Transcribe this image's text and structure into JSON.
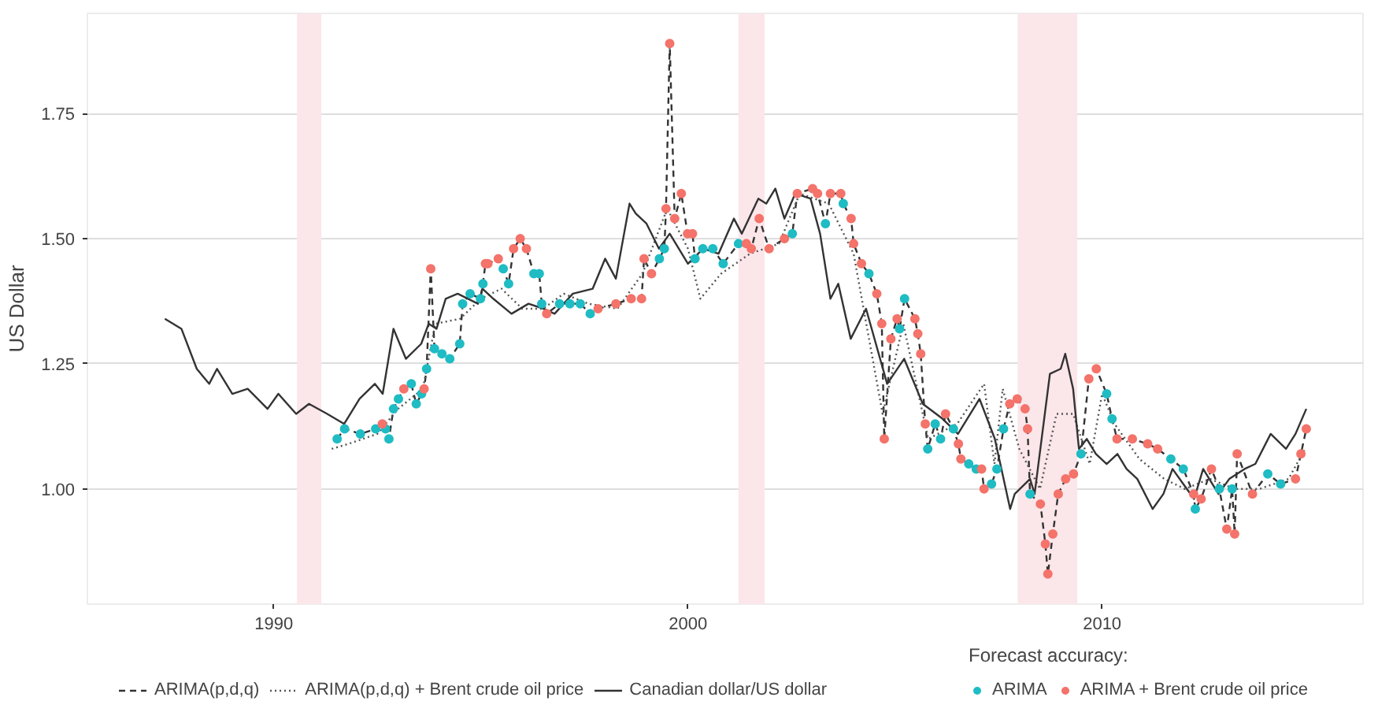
{
  "chart_data": {
    "type": "line",
    "ylabel": "US Dollar",
    "legend_title": "Forecast accuracy:",
    "xlim": [
      1985.5,
      2016.3
    ],
    "ylim": [
      0.77,
      1.95
    ],
    "xticks": [
      1990,
      2000,
      2010
    ],
    "yticks": [
      {
        "value": 1.0,
        "label": "1.00"
      },
      {
        "value": 1.25,
        "label": "1.25"
      },
      {
        "value": 1.5,
        "label": "1.50"
      },
      {
        "value": 1.75,
        "label": "1.75"
      }
    ],
    "grid": "y",
    "legend": "bottom",
    "bands": [
      {
        "axis": "x",
        "from": 1990.56,
        "to": 1991.15,
        "color": "#fbe6ea"
      },
      {
        "axis": "x",
        "from": 2001.22,
        "to": 2001.85,
        "color": "#fbe6ea"
      },
      {
        "axis": "x",
        "from": 2007.96,
        "to": 2009.4,
        "color": "#fbe6ea"
      }
    ],
    "series": [
      {
        "name": "ARIMA(p,d,q)",
        "line_style": "dashed",
        "color": "#333333",
        "x": [
          1991.53,
          1991.71,
          1992.09,
          1992.46,
          1992.62,
          1992.7,
          1992.78,
          1992.89,
          1993.01,
          1993.14,
          1993.32,
          1993.44,
          1993.57,
          1993.63,
          1993.69,
          1993.79,
          1993.88,
          1994.06,
          1994.25,
          1994.49,
          1994.56,
          1994.74,
          1994.99,
          1995.05,
          1995.11,
          1995.17,
          1995.42,
          1995.54,
          1995.67,
          1995.79,
          1995.95,
          1996.1,
          1996.28,
          1996.41,
          1996.47,
          1996.59,
          1996.9,
          1997.15,
          1997.4,
          1997.64,
          1997.83,
          1998.26,
          1998.63,
          1998.88,
          1998.94,
          1999.12,
          1999.31,
          1999.43,
          1999.47,
          1999.56,
          1999.68,
          1999.84,
          1999.99,
          2000.11,
          2000.17,
          2000.36,
          2000.6,
          2000.85,
          2001.22,
          2001.41,
          2001.53,
          2001.72,
          2001.96,
          2002.33,
          2002.52,
          2002.64,
          2003.01,
          2003.13,
          2003.32,
          2003.44,
          2003.69,
          2003.75,
          2003.94,
          2004.0,
          2004.19,
          2004.37,
          2004.56,
          2004.68,
          2004.74,
          2004.9,
          2005.05,
          2005.11,
          2005.23,
          2005.48,
          2005.55,
          2005.62,
          2005.73,
          2005.79,
          2005.97,
          2006.1,
          2006.22,
          2006.41,
          2006.53,
          2006.59,
          2006.78,
          2006.96,
          2007.09,
          2007.15,
          2007.33,
          2007.46,
          2007.62,
          2007.77,
          2007.95,
          2008.14,
          2008.2,
          2008.26,
          2008.51,
          2008.63,
          2008.69,
          2008.81,
          2008.94,
          2009.12,
          2009.31,
          2009.49,
          2009.68,
          2009.86,
          2010.11,
          2010.24,
          2010.36,
          2010.73,
          2011.1,
          2011.34,
          2011.66,
          2011.96,
          2012.21,
          2012.25,
          2012.39,
          2012.64,
          2012.83,
          2013.01,
          2013.14,
          2013.2,
          2013.26,
          2013.63,
          2014.0,
          2014.31,
          2014.67,
          2014.8,
          2014.93
        ],
        "values": [
          1.1,
          1.12,
          1.11,
          1.12,
          1.13,
          1.12,
          1.1,
          1.16,
          1.18,
          1.2,
          1.21,
          1.17,
          1.19,
          1.2,
          1.24,
          1.44,
          1.28,
          1.27,
          1.26,
          1.29,
          1.37,
          1.39,
          1.38,
          1.41,
          1.45,
          1.45,
          1.46,
          1.44,
          1.41,
          1.48,
          1.5,
          1.48,
          1.43,
          1.43,
          1.37,
          1.35,
          1.37,
          1.37,
          1.37,
          1.35,
          1.36,
          1.37,
          1.38,
          1.38,
          1.46,
          1.43,
          1.46,
          1.48,
          1.56,
          1.89,
          1.54,
          1.59,
          1.51,
          1.51,
          1.46,
          1.48,
          1.48,
          1.45,
          1.49,
          1.49,
          1.48,
          1.54,
          1.48,
          1.5,
          1.51,
          1.59,
          1.6,
          1.59,
          1.53,
          1.59,
          1.59,
          1.57,
          1.54,
          1.49,
          1.45,
          1.43,
          1.39,
          1.33,
          1.1,
          1.3,
          1.34,
          1.32,
          1.38,
          1.34,
          1.31,
          1.27,
          1.13,
          1.08,
          1.13,
          1.1,
          1.15,
          1.12,
          1.09,
          1.06,
          1.05,
          1.04,
          1.04,
          1.0,
          1.01,
          1.04,
          1.12,
          1.17,
          1.18,
          1.16,
          1.12,
          0.99,
          0.97,
          0.89,
          0.83,
          0.91,
          0.99,
          1.02,
          1.03,
          1.07,
          1.22,
          1.24,
          1.19,
          1.14,
          1.1,
          1.1,
          1.09,
          1.08,
          1.06,
          1.04,
          0.99,
          0.96,
          0.98,
          1.04,
          1.0,
          0.92,
          1.0,
          0.91,
          1.07,
          0.99,
          1.03,
          1.01,
          1.02,
          1.07,
          1.12
        ]
      },
      {
        "name": "ARIMA(p,d,q) + Brent crude oil price",
        "line_style": "dotted",
        "color": "#555555",
        "x": [
          1991.4,
          1991.8,
          1992.5,
          1993.0,
          1993.6,
          1993.9,
          1994.5,
          1995.0,
          1995.5,
          1996.0,
          1996.5,
          1997.0,
          1997.6,
          1998.3,
          1998.9,
          1999.5,
          2000.0,
          2000.3,
          2000.8,
          2001.5,
          2002.2,
          2002.7,
          2003.4,
          2004.0,
          2004.7,
          2005.2,
          2005.8,
          2006.5,
          2007.15,
          2007.4,
          2007.6,
          2008.0,
          2008.5,
          2008.9,
          2009.3,
          2009.7,
          2010.0,
          2010.3,
          2010.9,
          2011.5,
          2012.0,
          2012.6,
          2013.2,
          2013.8,
          2014.5,
          2014.9
        ],
        "values": [
          1.08,
          1.09,
          1.11,
          1.16,
          1.2,
          1.33,
          1.34,
          1.38,
          1.4,
          1.36,
          1.36,
          1.39,
          1.37,
          1.36,
          1.43,
          1.56,
          1.48,
          1.38,
          1.43,
          1.47,
          1.49,
          1.59,
          1.57,
          1.47,
          1.15,
          1.33,
          1.1,
          1.13,
          1.21,
          1.05,
          1.2,
          1.08,
          1.0,
          1.15,
          1.15,
          1.05,
          1.19,
          1.13,
          1.06,
          1.02,
          1.0,
          1.02,
          1.0,
          1.0,
          1.02,
          1.08
        ]
      },
      {
        "name": "Canadian dollar/US dollar",
        "line_style": "solid",
        "color": "#333333",
        "x": [
          1987.37,
          1987.77,
          1988.14,
          1988.44,
          1988.63,
          1989.0,
          1989.37,
          1989.85,
          1990.11,
          1990.54,
          1990.85,
          1991.29,
          1991.7,
          1992.07,
          1992.44,
          1992.63,
          1992.89,
          1993.19,
          1993.56,
          1993.74,
          1993.93,
          1994.15,
          1994.44,
          1994.93,
          1995.04,
          1995.3,
          1995.74,
          1996.15,
          1996.52,
          1996.78,
          1997.22,
          1997.7,
          1998.0,
          1998.26,
          1998.59,
          1998.74,
          1999.0,
          1999.3,
          1999.56,
          2000.0,
          2000.37,
          2000.74,
          2001.11,
          2001.3,
          2001.7,
          2001.89,
          2002.11,
          2002.33,
          2002.59,
          2002.96,
          2003.19,
          2003.44,
          2003.63,
          2003.93,
          2004.3,
          2004.81,
          2005.22,
          2005.67,
          2006.15,
          2006.52,
          2007.04,
          2007.41,
          2007.78,
          2007.89,
          2008.26,
          2008.37,
          2008.74,
          2009.0,
          2009.11,
          2009.3,
          2009.44,
          2009.63,
          2009.85,
          2010.11,
          2010.37,
          2010.59,
          2010.85,
          2011.22,
          2011.48,
          2011.7,
          2011.96,
          2012.22,
          2012.44,
          2012.81,
          2013.07,
          2013.44,
          2013.7,
          2014.07,
          2014.44,
          2014.67,
          2014.93
        ],
        "values": [
          1.34,
          1.32,
          1.24,
          1.21,
          1.24,
          1.19,
          1.2,
          1.16,
          1.19,
          1.15,
          1.17,
          1.15,
          1.13,
          1.18,
          1.21,
          1.19,
          1.32,
          1.26,
          1.29,
          1.33,
          1.32,
          1.38,
          1.39,
          1.37,
          1.4,
          1.38,
          1.35,
          1.37,
          1.36,
          1.35,
          1.39,
          1.4,
          1.46,
          1.42,
          1.57,
          1.55,
          1.53,
          1.48,
          1.51,
          1.45,
          1.48,
          1.47,
          1.54,
          1.51,
          1.58,
          1.57,
          1.6,
          1.54,
          1.59,
          1.58,
          1.51,
          1.38,
          1.41,
          1.3,
          1.36,
          1.21,
          1.26,
          1.17,
          1.14,
          1.11,
          1.18,
          1.1,
          0.96,
          0.99,
          1.02,
          0.99,
          1.23,
          1.24,
          1.27,
          1.2,
          1.08,
          1.1,
          1.07,
          1.05,
          1.07,
          1.04,
          1.02,
          0.96,
          0.99,
          1.04,
          1.01,
          0.98,
          1.04,
          0.99,
          1.02,
          1.04,
          1.05,
          1.11,
          1.08,
          1.11,
          1.16
        ]
      },
      {
        "name": "ARIMA",
        "type": "scatter",
        "marker": "circle",
        "color": "#1fbcc4",
        "x": [
          1991.53,
          1991.71,
          1992.09,
          1992.46,
          1992.7,
          1992.78,
          1992.89,
          1993.01,
          1993.32,
          1993.44,
          1993.57,
          1993.69,
          1993.88,
          1994.06,
          1994.25,
          1994.49,
          1994.56,
          1994.74,
          1994.99,
          1995.05,
          1995.54,
          1995.67,
          1996.28,
          1996.41,
          1996.47,
          1996.9,
          1997.15,
          1997.4,
          1997.64,
          1999.31,
          1999.43,
          2000.17,
          2000.36,
          2000.6,
          2000.85,
          2001.22,
          2002.52,
          2003.32,
          2003.75,
          2004.37,
          2005.11,
          2005.23,
          2005.79,
          2005.97,
          2006.1,
          2006.41,
          2006.78,
          2006.96,
          2007.33,
          2007.46,
          2007.62,
          2008.26,
          2009.49,
          2010.11,
          2010.24,
          2011.66,
          2011.96,
          2012.25,
          2012.83,
          2013.14,
          2014.0,
          2014.31
        ],
        "values": [
          1.1,
          1.12,
          1.11,
          1.12,
          1.12,
          1.1,
          1.16,
          1.18,
          1.21,
          1.17,
          1.19,
          1.24,
          1.28,
          1.27,
          1.26,
          1.29,
          1.37,
          1.39,
          1.38,
          1.41,
          1.44,
          1.41,
          1.43,
          1.43,
          1.37,
          1.37,
          1.37,
          1.37,
          1.35,
          1.46,
          1.48,
          1.46,
          1.48,
          1.48,
          1.45,
          1.49,
          1.51,
          1.53,
          1.57,
          1.43,
          1.32,
          1.38,
          1.08,
          1.13,
          1.1,
          1.12,
          1.05,
          1.04,
          1.01,
          1.04,
          1.12,
          0.99,
          1.07,
          1.19,
          1.14,
          1.06,
          1.04,
          0.96,
          1.0,
          1.0,
          1.03,
          1.01
        ]
      },
      {
        "name": "ARIMA + Brent crude oil price",
        "type": "scatter",
        "marker": "circle",
        "color": "#f4736a",
        "x": [
          1992.62,
          1993.14,
          1993.63,
          1993.79,
          1995.11,
          1995.17,
          1995.42,
          1995.79,
          1995.95,
          1996.1,
          1996.59,
          1997.83,
          1998.26,
          1998.63,
          1998.88,
          1998.94,
          1999.12,
          1999.47,
          1999.56,
          1999.68,
          1999.84,
          1999.99,
          2000.11,
          2001.41,
          2001.53,
          2001.72,
          2001.96,
          2002.33,
          2002.64,
          2003.01,
          2003.13,
          2003.44,
          2003.69,
          2003.94,
          2004.0,
          2004.19,
          2004.56,
          2004.68,
          2004.74,
          2004.9,
          2005.05,
          2005.48,
          2005.55,
          2005.62,
          2005.73,
          2006.22,
          2006.53,
          2006.59,
          2007.09,
          2007.15,
          2007.77,
          2007.95,
          2008.14,
          2008.2,
          2008.51,
          2008.63,
          2008.69,
          2008.81,
          2008.94,
          2009.12,
          2009.31,
          2009.68,
          2009.86,
          2010.36,
          2010.73,
          2011.1,
          2011.34,
          2012.21,
          2012.39,
          2012.64,
          2013.01,
          2013.2,
          2013.26,
          2013.63,
          2014.67,
          2014.8,
          2014.93
        ],
        "values": [
          1.13,
          1.2,
          1.2,
          1.44,
          1.45,
          1.45,
          1.46,
          1.48,
          1.5,
          1.48,
          1.35,
          1.36,
          1.37,
          1.38,
          1.38,
          1.46,
          1.43,
          1.56,
          1.89,
          1.54,
          1.59,
          1.51,
          1.51,
          1.49,
          1.48,
          1.54,
          1.48,
          1.5,
          1.59,
          1.6,
          1.59,
          1.59,
          1.59,
          1.54,
          1.49,
          1.45,
          1.39,
          1.33,
          1.1,
          1.3,
          1.34,
          1.34,
          1.31,
          1.27,
          1.13,
          1.15,
          1.09,
          1.06,
          1.04,
          1.0,
          1.17,
          1.18,
          1.16,
          1.12,
          0.97,
          0.89,
          0.83,
          0.91,
          0.99,
          1.02,
          1.03,
          1.22,
          1.24,
          1.1,
          1.1,
          1.09,
          1.08,
          0.99,
          0.98,
          1.04,
          0.92,
          0.91,
          1.07,
          0.99,
          1.02,
          1.07,
          1.12
        ]
      }
    ]
  }
}
